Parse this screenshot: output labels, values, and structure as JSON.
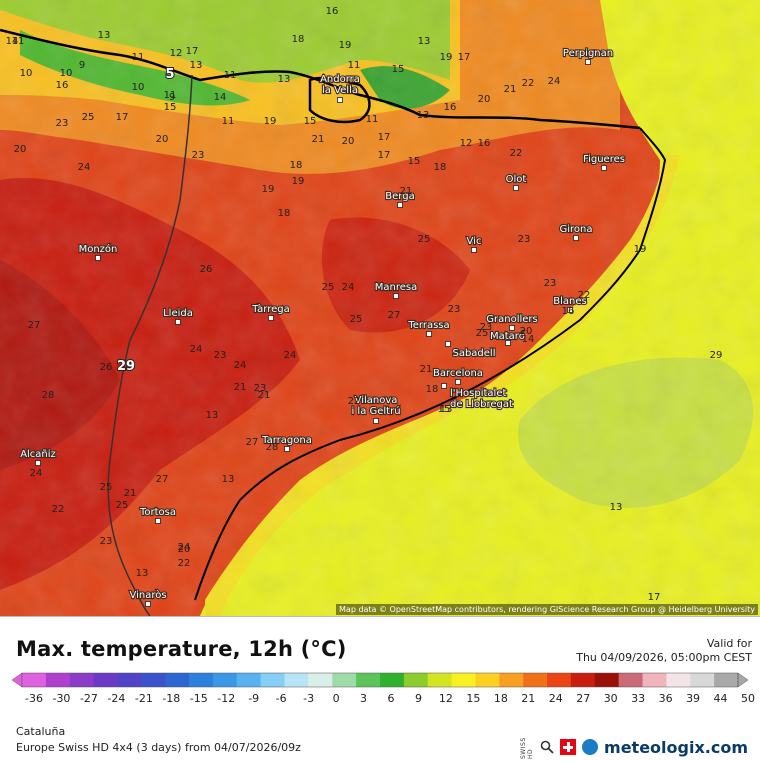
{
  "map": {
    "attribution": "Map data © OpenStreetMap contributors, rendering GIScience Research Group @ Heidelberg University",
    "cities": [
      {
        "name": "Perpignan"
      },
      {
        "name": "Andorra la Vella"
      },
      {
        "name": "Figueres"
      },
      {
        "name": "Olot"
      },
      {
        "name": "Berga"
      },
      {
        "name": "Girona"
      },
      {
        "name": "Vic"
      },
      {
        "name": "Monzón"
      },
      {
        "name": "Manresa"
      },
      {
        "name": "Blanes"
      },
      {
        "name": "Lleida"
      },
      {
        "name": "Tàrrega"
      },
      {
        "name": "Granollers"
      },
      {
        "name": "Terrassa"
      },
      {
        "name": "Mataró"
      },
      {
        "name": "Sabadell"
      },
      {
        "name": "Barcelona"
      },
      {
        "name": "l'Hospitalet de Llobregat"
      },
      {
        "name": "Vilanova i la Geltrú"
      },
      {
        "name": "Tarragona"
      },
      {
        "name": "Alcañiz"
      },
      {
        "name": "Tortosa"
      },
      {
        "name": "Vinaròs"
      }
    ],
    "temperatures": [
      "16",
      "11",
      "13",
      "10",
      "9",
      "10",
      "12",
      "17",
      "13",
      "5",
      "11",
      "13",
      "18",
      "19",
      "11",
      "14",
      "15",
      "19",
      "17",
      "13",
      "16",
      "20",
      "21",
      "22",
      "24",
      "14",
      "11",
      "16",
      "15",
      "19",
      "10",
      "11",
      "11",
      "9",
      "23",
      "25",
      "17",
      "20",
      "15",
      "11",
      "21",
      "19",
      "20",
      "18",
      "13",
      "17",
      "15",
      "18",
      "12",
      "16",
      "22",
      "21",
      "20",
      "24",
      "23",
      "18",
      "19",
      "17",
      "23",
      "25",
      "26",
      "23",
      "25",
      "24",
      "27",
      "25",
      "23",
      "22",
      "25",
      "19",
      "23",
      "20",
      "16",
      "28",
      "27",
      "28",
      "26",
      "24",
      "23",
      "24",
      "14",
      "23",
      "21",
      "24",
      "21",
      "21",
      "22",
      "18",
      "13",
      "13",
      "27",
      "28",
      "24",
      "25",
      "22",
      "21",
      "25",
      "27",
      "20",
      "23",
      "24",
      "22",
      "13",
      "15",
      "13",
      "13",
      "17",
      "29"
    ],
    "big_labels": [
      "5",
      "29"
    ]
  },
  "footer": {
    "title": "Max. temperature, 12h (°C)",
    "valid_label": "Valid for",
    "valid_date": "Thu 04/09/2026, 05:00pm CEST",
    "region": "Cataluña",
    "model": "Europe Swiss HD 4x4 (3 days) from 04/07/2026/09z",
    "brand": "meteologix.com",
    "brand_prefix": "SWISS HD"
  },
  "colorbar": {
    "ticks": [
      "-36",
      "-30",
      "-27",
      "-24",
      "-21",
      "-18",
      "-15",
      "-12",
      "-9",
      "-6",
      "-3",
      "0",
      "3",
      "6",
      "9",
      "12",
      "15",
      "18",
      "21",
      "24",
      "27",
      "30",
      "33",
      "36",
      "39",
      "44",
      "50"
    ],
    "colors": [
      "#e060e0",
      "#b040d0",
      "#8a3cc8",
      "#6a3ac4",
      "#5044c6",
      "#3c52ca",
      "#2c66d0",
      "#2e80dc",
      "#3c98e6",
      "#58b2ee",
      "#86cef4",
      "#b8e4f8",
      "#d8f0e8",
      "#9edba8",
      "#5cc45a",
      "#30b030",
      "#8ccc2c",
      "#d4e420",
      "#f8f020",
      "#fcd020",
      "#f8a020",
      "#f07018",
      "#e84414",
      "#c81e10",
      "#9a1008",
      "#c86a78",
      "#f0b4bc",
      "#f4e4e8",
      "#d8d8d8",
      "#a8a8a8"
    ]
  }
}
